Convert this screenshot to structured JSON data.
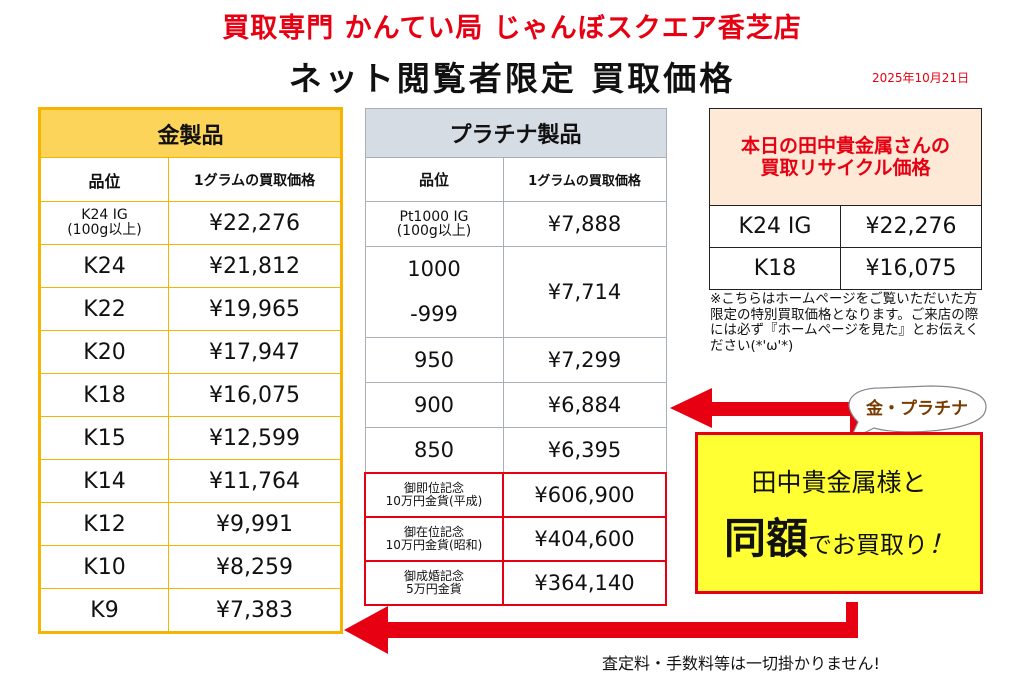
{
  "header": {
    "store_name": "買取専門 かんてい局 じゃんぼスクエア香芝店",
    "title": "ネット閲覧者限定 買取価格",
    "date": "2025年10月21日"
  },
  "gold_table": {
    "title": "金製品",
    "col_grade": "品位",
    "col_price": "1グラムの買取価格",
    "rows": [
      {
        "grade": "K24 IG\n(100g以上)",
        "price": "¥22,276"
      },
      {
        "grade": "K24",
        "price": "¥21,812"
      },
      {
        "grade": "K22",
        "price": "¥19,965"
      },
      {
        "grade": "K20",
        "price": "¥17,947"
      },
      {
        "grade": "K18",
        "price": "¥16,075"
      },
      {
        "grade": "K15",
        "price": "¥12,599"
      },
      {
        "grade": "K14",
        "price": "¥11,764"
      },
      {
        "grade": "K12",
        "price": "¥9,991"
      },
      {
        "grade": "K10",
        "price": "¥8,259"
      },
      {
        "grade": "K9",
        "price": "¥7,383"
      }
    ]
  },
  "platinum_table": {
    "title": "プラチナ製品",
    "col_grade": "品位",
    "col_price": "1グラムの買取価格",
    "pt_ig_grade_line1": "Pt1000 IG",
    "pt_ig_grade_line2": "(100g以上)",
    "pt_ig_price": "¥7,888",
    "pt1000_line1": "1000",
    "pt1000_line2": "-999",
    "pt1000_price": "¥7,714",
    "rows": [
      {
        "grade": "950",
        "price": "¥7,299"
      },
      {
        "grade": "900",
        "price": "¥6,884"
      },
      {
        "grade": "850",
        "price": "¥6,395"
      }
    ],
    "coins": [
      {
        "name_line1": "御即位記念",
        "name_line2": "10万円金貨(平成)",
        "price": "¥606,900"
      },
      {
        "name_line1": "御在位記念",
        "name_line2": "10万円金貨(昭和)",
        "price": "¥404,600"
      },
      {
        "name_line1": "御成婚記念",
        "name_line2": "5万円金貨",
        "price": "¥364,140"
      }
    ]
  },
  "tanaka_box": {
    "title_line1": "本日の田中貴金属さんの",
    "title_line2": "買取リサイクル価格",
    "rows": [
      {
        "grade": "K24 IG",
        "price": "¥22,276"
      },
      {
        "grade": "K18",
        "price": "¥16,075"
      }
    ]
  },
  "note": "※こちらはホームページをご覧いただいた方限定の特別買取価格となります。ご来店の際には必ず『ホームページを見た』とお伝えください(*'ω'*)",
  "bubble": "金・プラチナ",
  "callout": {
    "line1": "田中貴金属様と",
    "big": "同額",
    "rest": "でお買取り",
    "exclaim": "！"
  },
  "footer": "査定料・手数料等は一切掛かりません!",
  "colors": {
    "red": "#e60012",
    "gold_border": "#f5b400",
    "gold_header": "#fdd45a",
    "platinum_header": "#d6dce4",
    "callout_yellow": "#ffff33",
    "tanaka_header": "#fde9d6"
  }
}
